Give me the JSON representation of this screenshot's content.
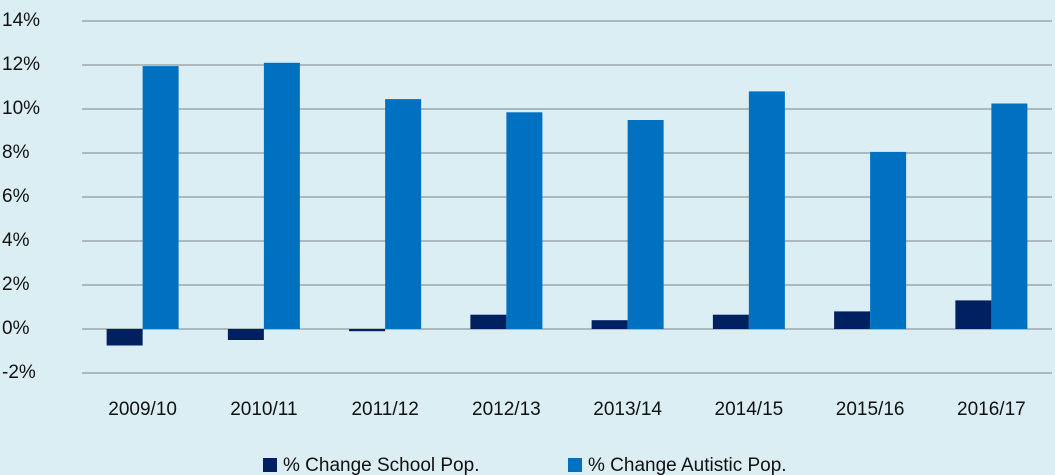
{
  "chart_data": {
    "type": "bar",
    "categories": [
      "2009/10",
      "2010/11",
      "2011/12",
      "2012/13",
      "2013/14",
      "2014/15",
      "2015/16",
      "2016/17"
    ],
    "series": [
      {
        "name": "% Change School Pop.",
        "color": "#002060",
        "values": [
          -0.75,
          -0.5,
          -0.1,
          0.65,
          0.4,
          0.65,
          0.8,
          1.3
        ]
      },
      {
        "name": "% Change Autistic Pop.",
        "color": "#0070c0",
        "values": [
          11.95,
          12.1,
          10.45,
          9.85,
          9.5,
          10.8,
          8.05,
          10.25
        ]
      }
    ],
    "ylim": [
      -2,
      14
    ],
    "yticks": [
      {
        "value": -2,
        "label": "-2%"
      },
      {
        "value": 0,
        "label": "0%"
      },
      {
        "value": 2,
        "label": "2%"
      },
      {
        "value": 4,
        "label": "4%"
      },
      {
        "value": 6,
        "label": "6%"
      },
      {
        "value": 8,
        "label": "8%"
      },
      {
        "value": 10,
        "label": "10%"
      },
      {
        "value": 12,
        "label": "12%"
      },
      {
        "value": 14,
        "label": "14%"
      }
    ],
    "grid": true,
    "legend": "bottom"
  }
}
